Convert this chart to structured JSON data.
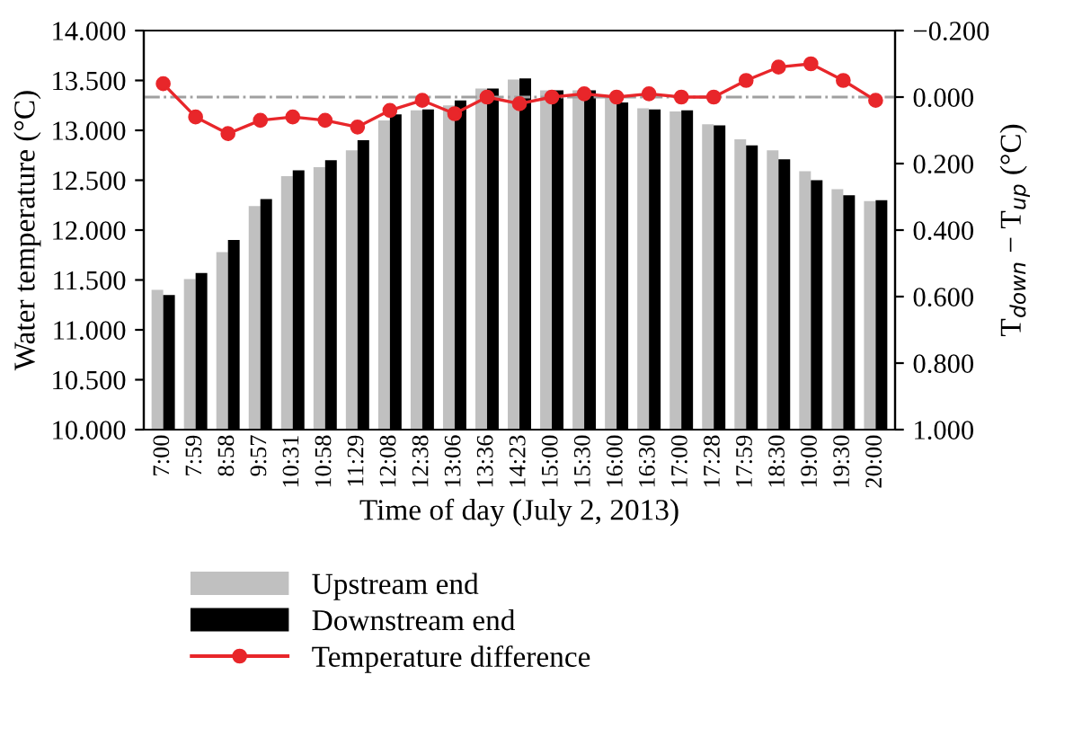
{
  "chart_data": {
    "type": "bar",
    "xlabel": "Time of day (July 2, 2013)",
    "ylabel": "Water temperature (°C)",
    "y2label": "T$_{down}$ − T$_{up}$ (°C)",
    "categories": [
      "7:00",
      "7:59",
      "8:58",
      "9:57",
      "10:31",
      "10:58",
      "11:29",
      "12:08",
      "12:38",
      "13:06",
      "13:36",
      "14:23",
      "15:00",
      "15:30",
      "16:00",
      "16:30",
      "17:00",
      "17:28",
      "17:59",
      "18:30",
      "19:00",
      "19:30",
      "20:00"
    ],
    "series": [
      {
        "name": "Upstream end",
        "color": "#c0c0c0",
        "values": [
          11.4,
          11.51,
          11.78,
          12.24,
          12.54,
          12.63,
          12.8,
          13.1,
          13.2,
          13.25,
          13.42,
          13.51,
          13.4,
          13.4,
          13.33,
          13.22,
          13.19,
          13.06,
          12.91,
          12.8,
          12.59,
          12.41,
          12.29
        ]
      },
      {
        "name": "Downstream end",
        "color": "#000000",
        "values": [
          11.35,
          11.57,
          11.9,
          12.31,
          12.6,
          12.7,
          12.9,
          13.16,
          13.21,
          13.3,
          13.42,
          13.52,
          13.4,
          13.4,
          13.28,
          13.21,
          13.2,
          13.05,
          12.85,
          12.71,
          12.5,
          12.35,
          12.3
        ]
      },
      {
        "name": "Temperature difference",
        "type": "line",
        "axis": "y2",
        "color": "#e8262a",
        "marker": "circle",
        "values": [
          -0.04,
          0.06,
          0.11,
          0.07,
          0.06,
          0.07,
          0.09,
          0.04,
          0.01,
          0.05,
          0.0,
          0.02,
          0.0,
          -0.01,
          0.0,
          -0.01,
          0.0,
          0.0,
          -0.05,
          -0.09,
          -0.1,
          -0.05,
          0.01
        ]
      }
    ],
    "ylim": [
      10,
      14
    ],
    "yticks": [
      {
        "value": 10,
        "label": "10.000"
      },
      {
        "value": 10.5,
        "label": "10.500"
      },
      {
        "value": 11,
        "label": "11.000"
      },
      {
        "value": 11.5,
        "label": "11.500"
      },
      {
        "value": 12,
        "label": "12.000"
      },
      {
        "value": 12.5,
        "label": "12.500"
      },
      {
        "value": 13,
        "label": "13.000"
      },
      {
        "value": 13.5,
        "label": "13.500"
      },
      {
        "value": 14,
        "label": "14.000"
      }
    ],
    "y2lim": [
      1,
      -0.2
    ],
    "y2ticks": [
      {
        "value": -0.2,
        "label": "−0.200"
      },
      {
        "value": 0,
        "label": "0.000"
      },
      {
        "value": 0.2,
        "label": "0.200"
      },
      {
        "value": 0.4,
        "label": "0.400"
      },
      {
        "value": 0.6,
        "label": "0.600"
      },
      {
        "value": 0.8,
        "label": "0.800"
      },
      {
        "value": 1,
        "label": "1.000"
      }
    ],
    "ref_lines": [
      {
        "axis": "y2",
        "value": 0,
        "color": "#a0a0a0",
        "line_style": "dashdot"
      }
    ],
    "legend": "bottom",
    "grid": false
  }
}
